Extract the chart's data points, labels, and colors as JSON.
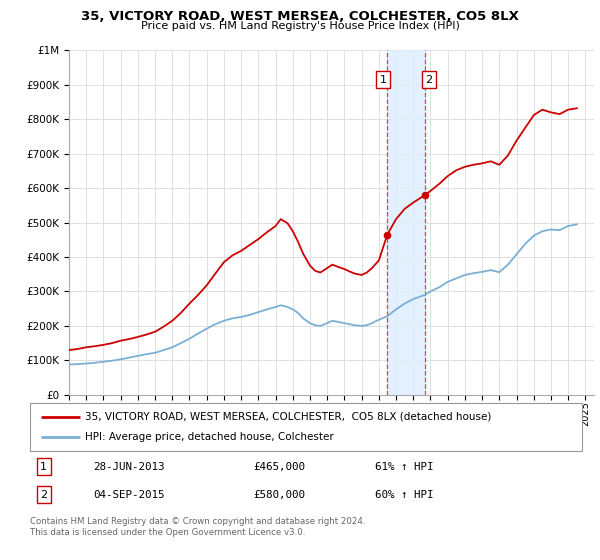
{
  "title": "35, VICTORY ROAD, WEST MERSEA, COLCHESTER, CO5 8LX",
  "subtitle": "Price paid vs. HM Land Registry's House Price Index (HPI)",
  "ylabel_ticks": [
    "£0",
    "£100K",
    "£200K",
    "£300K",
    "£400K",
    "£500K",
    "£600K",
    "£700K",
    "£800K",
    "£900K",
    "£1M"
  ],
  "ytick_vals": [
    0,
    100000,
    200000,
    300000,
    400000,
    500000,
    600000,
    700000,
    800000,
    900000,
    1000000
  ],
  "ylim": [
    0,
    1000000
  ],
  "xlim_start": 1995.0,
  "xlim_end": 2025.5,
  "red_line_color": "#cc0000",
  "blue_line_color": "#7bafd4",
  "transaction1_x": 2013.49,
  "transaction1_y": 465000,
  "transaction2_x": 2015.67,
  "transaction2_y": 580000,
  "vline1_x": 2013.49,
  "vline2_x": 2015.67,
  "shade_color": "#ddeeff",
  "legend_label1": "35, VICTORY ROAD, WEST MERSEA, COLCHESTER,  CO5 8LX (detached house)",
  "legend_label2": "HPI: Average price, detached house, Colchester",
  "table_row1": [
    "1",
    "28-JUN-2013",
    "£465,000",
    "61% ↑ HPI"
  ],
  "table_row2": [
    "2",
    "04-SEP-2015",
    "£580,000",
    "60% ↑ HPI"
  ],
  "footnote1": "Contains HM Land Registry data © Crown copyright and database right 2024.",
  "footnote2": "This data is licensed under the Open Government Licence v3.0.",
  "background_color": "#ffffff",
  "grid_color": "#e0e0e0",
  "red_anchors": [
    [
      1995.0,
      130000
    ],
    [
      1995.5,
      133000
    ],
    [
      1996.0,
      138000
    ],
    [
      1996.5,
      141000
    ],
    [
      1997.0,
      145000
    ],
    [
      1997.5,
      150000
    ],
    [
      1998.0,
      157000
    ],
    [
      1998.5,
      162000
    ],
    [
      1999.0,
      168000
    ],
    [
      1999.5,
      175000
    ],
    [
      2000.0,
      183000
    ],
    [
      2000.5,
      198000
    ],
    [
      2001.0,
      215000
    ],
    [
      2001.5,
      238000
    ],
    [
      2002.0,
      265000
    ],
    [
      2002.5,
      290000
    ],
    [
      2003.0,
      318000
    ],
    [
      2003.5,
      352000
    ],
    [
      2004.0,
      385000
    ],
    [
      2004.5,
      405000
    ],
    [
      2005.0,
      418000
    ],
    [
      2005.5,
      435000
    ],
    [
      2006.0,
      452000
    ],
    [
      2006.5,
      472000
    ],
    [
      2007.0,
      490000
    ],
    [
      2007.3,
      510000
    ],
    [
      2007.7,
      498000
    ],
    [
      2008.0,
      475000
    ],
    [
      2008.3,
      445000
    ],
    [
      2008.6,
      410000
    ],
    [
      2009.0,
      375000
    ],
    [
      2009.3,
      360000
    ],
    [
      2009.6,
      355000
    ],
    [
      2010.0,
      368000
    ],
    [
      2010.3,
      378000
    ],
    [
      2010.6,
      372000
    ],
    [
      2011.0,
      365000
    ],
    [
      2011.3,
      358000
    ],
    [
      2011.6,
      352000
    ],
    [
      2012.0,
      348000
    ],
    [
      2012.3,
      355000
    ],
    [
      2012.6,
      368000
    ],
    [
      2013.0,
      390000
    ],
    [
      2013.49,
      465000
    ],
    [
      2014.0,
      510000
    ],
    [
      2014.5,
      540000
    ],
    [
      2015.0,
      558000
    ],
    [
      2015.67,
      580000
    ],
    [
      2016.0,
      592000
    ],
    [
      2016.5,
      612000
    ],
    [
      2017.0,
      635000
    ],
    [
      2017.5,
      652000
    ],
    [
      2018.0,
      662000
    ],
    [
      2018.5,
      668000
    ],
    [
      2019.0,
      672000
    ],
    [
      2019.5,
      678000
    ],
    [
      2020.0,
      668000
    ],
    [
      2020.5,
      695000
    ],
    [
      2021.0,
      738000
    ],
    [
      2021.5,
      775000
    ],
    [
      2022.0,
      812000
    ],
    [
      2022.5,
      828000
    ],
    [
      2023.0,
      820000
    ],
    [
      2023.5,
      815000
    ],
    [
      2024.0,
      828000
    ],
    [
      2024.5,
      832000
    ]
  ],
  "blue_anchors": [
    [
      1995.0,
      88000
    ],
    [
      1995.5,
      89000
    ],
    [
      1996.0,
      91000
    ],
    [
      1996.5,
      93000
    ],
    [
      1997.0,
      96000
    ],
    [
      1997.5,
      99000
    ],
    [
      1998.0,
      103000
    ],
    [
      1998.5,
      108000
    ],
    [
      1999.0,
      113000
    ],
    [
      1999.5,
      118000
    ],
    [
      2000.0,
      122000
    ],
    [
      2000.5,
      130000
    ],
    [
      2001.0,
      138000
    ],
    [
      2001.5,
      150000
    ],
    [
      2002.0,
      163000
    ],
    [
      2002.5,
      178000
    ],
    [
      2003.0,
      192000
    ],
    [
      2003.5,
      205000
    ],
    [
      2004.0,
      215000
    ],
    [
      2004.5,
      222000
    ],
    [
      2005.0,
      226000
    ],
    [
      2005.5,
      232000
    ],
    [
      2006.0,
      240000
    ],
    [
      2006.5,
      248000
    ],
    [
      2007.0,
      255000
    ],
    [
      2007.3,
      260000
    ],
    [
      2007.7,
      255000
    ],
    [
      2008.0,
      248000
    ],
    [
      2008.3,
      238000
    ],
    [
      2008.6,
      222000
    ],
    [
      2009.0,
      208000
    ],
    [
      2009.3,
      202000
    ],
    [
      2009.6,
      200000
    ],
    [
      2010.0,
      208000
    ],
    [
      2010.3,
      215000
    ],
    [
      2010.6,
      212000
    ],
    [
      2011.0,
      208000
    ],
    [
      2011.3,
      205000
    ],
    [
      2011.6,
      202000
    ],
    [
      2012.0,
      200000
    ],
    [
      2012.3,
      202000
    ],
    [
      2012.6,
      208000
    ],
    [
      2013.0,
      218000
    ],
    [
      2013.49,
      228000
    ],
    [
      2014.0,
      248000
    ],
    [
      2014.5,
      265000
    ],
    [
      2015.0,
      278000
    ],
    [
      2015.67,
      290000
    ],
    [
      2016.0,
      300000
    ],
    [
      2016.5,
      312000
    ],
    [
      2017.0,
      328000
    ],
    [
      2017.5,
      338000
    ],
    [
      2018.0,
      348000
    ],
    [
      2018.5,
      353000
    ],
    [
      2019.0,
      357000
    ],
    [
      2019.5,
      362000
    ],
    [
      2020.0,
      356000
    ],
    [
      2020.5,
      378000
    ],
    [
      2021.0,
      408000
    ],
    [
      2021.5,
      438000
    ],
    [
      2022.0,
      462000
    ],
    [
      2022.5,
      475000
    ],
    [
      2023.0,
      480000
    ],
    [
      2023.5,
      478000
    ],
    [
      2024.0,
      490000
    ],
    [
      2024.5,
      495000
    ]
  ]
}
